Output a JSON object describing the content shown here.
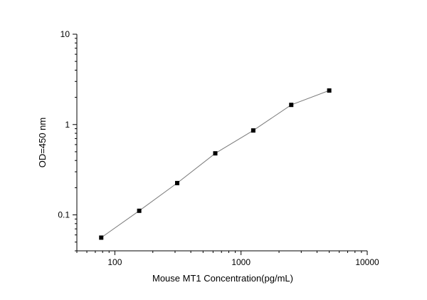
{
  "chart_data": {
    "type": "line",
    "title": "",
    "xlabel": "Mouse MT1 Concentration(pg/mL)",
    "ylabel": "OD=450 nm",
    "xscale": "log",
    "yscale": "log",
    "xlim": [
      50,
      10000
    ],
    "ylim": [
      0.04,
      10
    ],
    "grid": false,
    "x_ticks": [
      "100",
      "1000",
      "10000"
    ],
    "y_ticks": [
      "0.1",
      "1",
      "10"
    ],
    "series": [
      {
        "x": [
          78,
          156,
          312,
          625,
          1250,
          2500,
          5000
        ],
        "y": [
          0.056,
          0.111,
          0.225,
          0.48,
          0.86,
          1.65,
          2.38
        ]
      }
    ],
    "colors": {
      "line": "#7a7a7a",
      "marker": "#000000"
    }
  }
}
